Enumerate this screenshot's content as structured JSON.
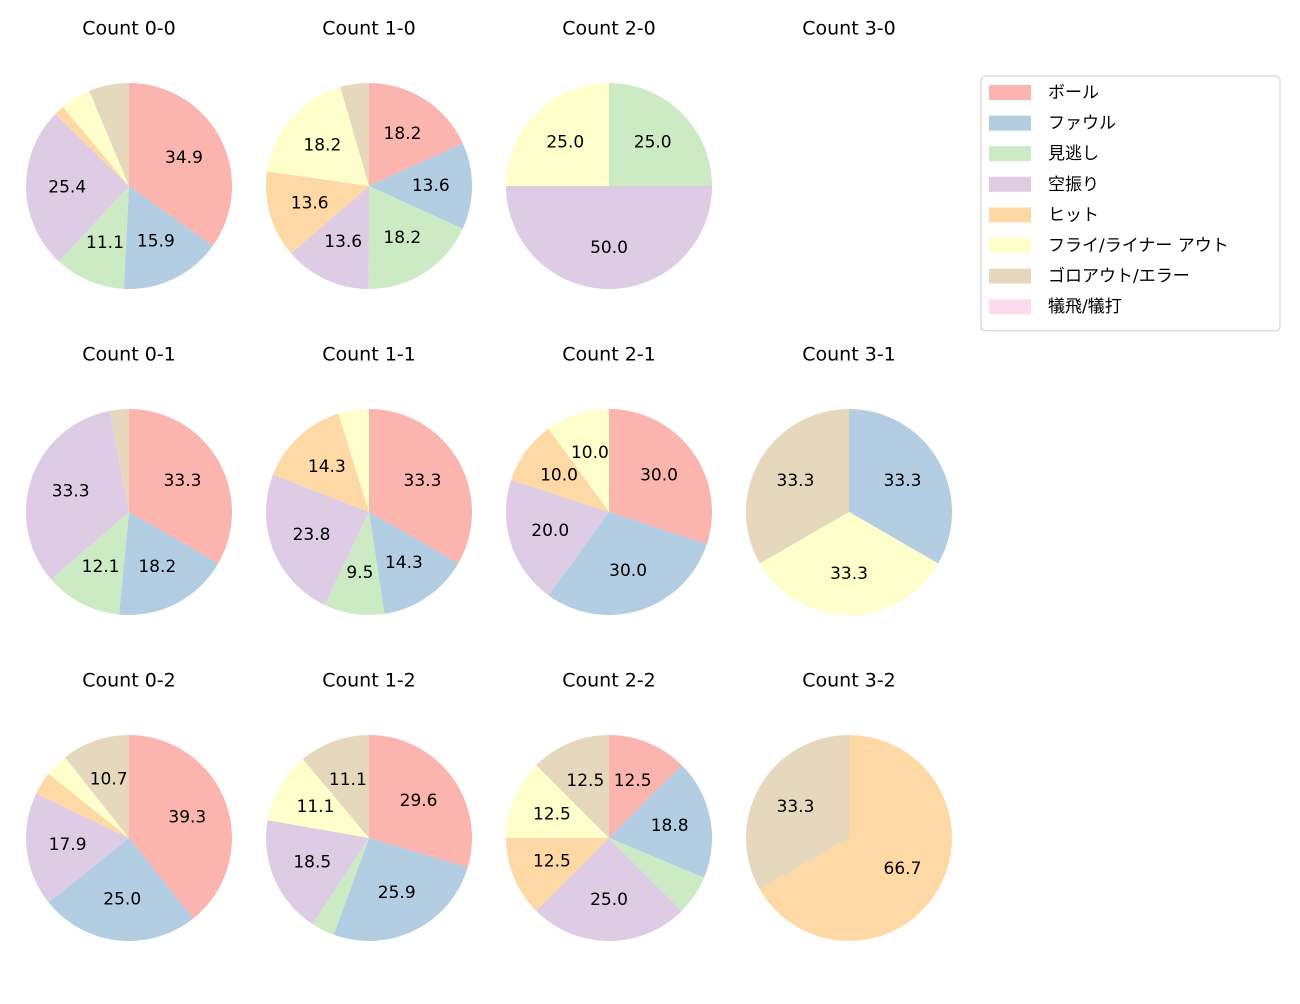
{
  "chart_data": [
    {
      "type": "pie",
      "title": "Count 0-0",
      "categories": [
        "ボール",
        "ファウル",
        "見逃し",
        "空振り",
        "ヒット",
        "フライ/ライナー アウト",
        "ゴロアウト/エラー",
        "犠飛/犠打"
      ],
      "colors": [
        "#fbb4ae",
        "#b3cde3",
        "#ccebc5",
        "#decbe4",
        "#fed9a6",
        "#ffffcc",
        "#e5d8bd",
        "#fddaec"
      ],
      "legend_loc": "upper right",
      "values": [
        34.9,
        15.9,
        11.1,
        25.4,
        1.6,
        4.8,
        6.3,
        0
      ],
      "value_labels": [
        "34.9",
        "15.9",
        "11.1",
        "25.4",
        null,
        null,
        null,
        null
      ]
    },
    {
      "type": "pie",
      "title": "Count 1-0",
      "values": [
        18.2,
        13.6,
        18.2,
        13.6,
        13.6,
        18.2,
        4.5,
        0
      ],
      "value_labels": [
        "18.2",
        "13.6",
        "18.2",
        "13.6",
        "13.6",
        "18.2",
        null,
        null
      ]
    },
    {
      "type": "pie",
      "title": "Count 2-0",
      "values": [
        0,
        0,
        25,
        50,
        0,
        25,
        0,
        0
      ],
      "value_labels": [
        null,
        null,
        "25.0",
        "50.0",
        null,
        "25.0",
        null,
        null
      ]
    },
    {
      "type": "pie",
      "title": "Count 3-0",
      "values": [
        0,
        0,
        0,
        0,
        0,
        0,
        0,
        0
      ],
      "value_labels": [
        null,
        null,
        null,
        null,
        null,
        null,
        null,
        null
      ]
    },
    {
      "type": "pie",
      "title": "Count 0-1",
      "values": [
        33.3,
        18.2,
        12.1,
        33.3,
        0,
        0,
        3.0,
        0
      ],
      "value_labels": [
        "33.3",
        "18.2",
        "12.1",
        "33.3",
        null,
        null,
        null,
        null
      ]
    },
    {
      "type": "pie",
      "title": "Count 1-1",
      "values": [
        33.3,
        14.3,
        9.5,
        23.8,
        14.3,
        4.8,
        0,
        0
      ],
      "value_labels": [
        "33.3",
        "14.3",
        "9.5",
        "23.8",
        "14.3",
        null,
        null,
        null
      ]
    },
    {
      "type": "pie",
      "title": "Count 2-1",
      "values": [
        30,
        30,
        0,
        20,
        10,
        10,
        0,
        0
      ],
      "value_labels": [
        "30.0",
        "30.0",
        null,
        "20.0",
        "10.0",
        "10.0",
        null,
        null
      ]
    },
    {
      "type": "pie",
      "title": "Count 3-1",
      "values": [
        0,
        33.3,
        0,
        0,
        0,
        33.3,
        33.3,
        0
      ],
      "value_labels": [
        null,
        "33.3",
        null,
        null,
        null,
        "33.3",
        "33.3",
        null
      ]
    },
    {
      "type": "pie",
      "title": "Count 0-2",
      "values": [
        39.3,
        25.0,
        0,
        17.9,
        3.6,
        3.6,
        10.7,
        0
      ],
      "value_labels": [
        "39.3",
        "25.0",
        null,
        "17.9",
        null,
        null,
        "10.7",
        null
      ]
    },
    {
      "type": "pie",
      "title": "Count 1-2",
      "values": [
        29.6,
        25.9,
        3.7,
        18.5,
        0,
        11.1,
        11.1,
        0
      ],
      "value_labels": [
        "29.6",
        "25.9",
        null,
        "18.5",
        null,
        "11.1",
        "11.1",
        null
      ]
    },
    {
      "type": "pie",
      "title": "Count 2-2",
      "values": [
        12.5,
        18.8,
        6.2,
        25.0,
        12.5,
        12.5,
        12.5,
        0
      ],
      "value_labels": [
        "12.5",
        "18.8",
        null,
        "25.0",
        "12.5",
        "12.5",
        "12.5",
        null
      ]
    },
    {
      "type": "pie",
      "title": "Count 3-2",
      "values": [
        0,
        0,
        0,
        0,
        66.7,
        0,
        33.3,
        0
      ],
      "value_labels": [
        null,
        null,
        null,
        null,
        "66.7",
        null,
        "33.3",
        null
      ]
    }
  ]
}
